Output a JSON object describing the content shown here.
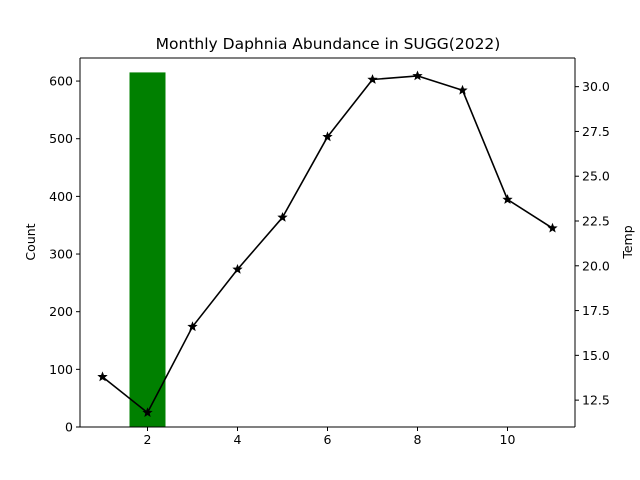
{
  "chart_data": {
    "type": "bar+line",
    "title": "Monthly Daphnia Abundance in SUGG(2022)",
    "xlabel": "",
    "ylabel": "Count",
    "y2label": "Temp",
    "xlim": [
      0.5,
      11.5
    ],
    "ylim": [
      0,
      640
    ],
    "y2lim": [
      11.0,
      31.6
    ],
    "xticks": [
      2,
      4,
      6,
      8,
      10
    ],
    "yticks": [
      0,
      100,
      200,
      300,
      400,
      500,
      600
    ],
    "y2ticks": [
      12.5,
      15.0,
      17.5,
      20.0,
      22.5,
      25.0,
      27.5,
      30.0
    ],
    "grid": false,
    "bars": {
      "name": "Count",
      "axis": "left",
      "color": "#008000",
      "x": [
        2
      ],
      "values": [
        615
      ],
      "width": 0.8
    },
    "line": {
      "name": "Temp",
      "axis": "right",
      "color": "#000000",
      "marker": "star",
      "x": [
        1,
        2,
        3,
        4,
        5,
        6,
        7,
        8,
        9,
        10,
        11
      ],
      "values": [
        13.8,
        11.8,
        16.6,
        19.8,
        22.7,
        27.2,
        30.4,
        30.6,
        29.8,
        23.7,
        22.1
      ]
    }
  }
}
